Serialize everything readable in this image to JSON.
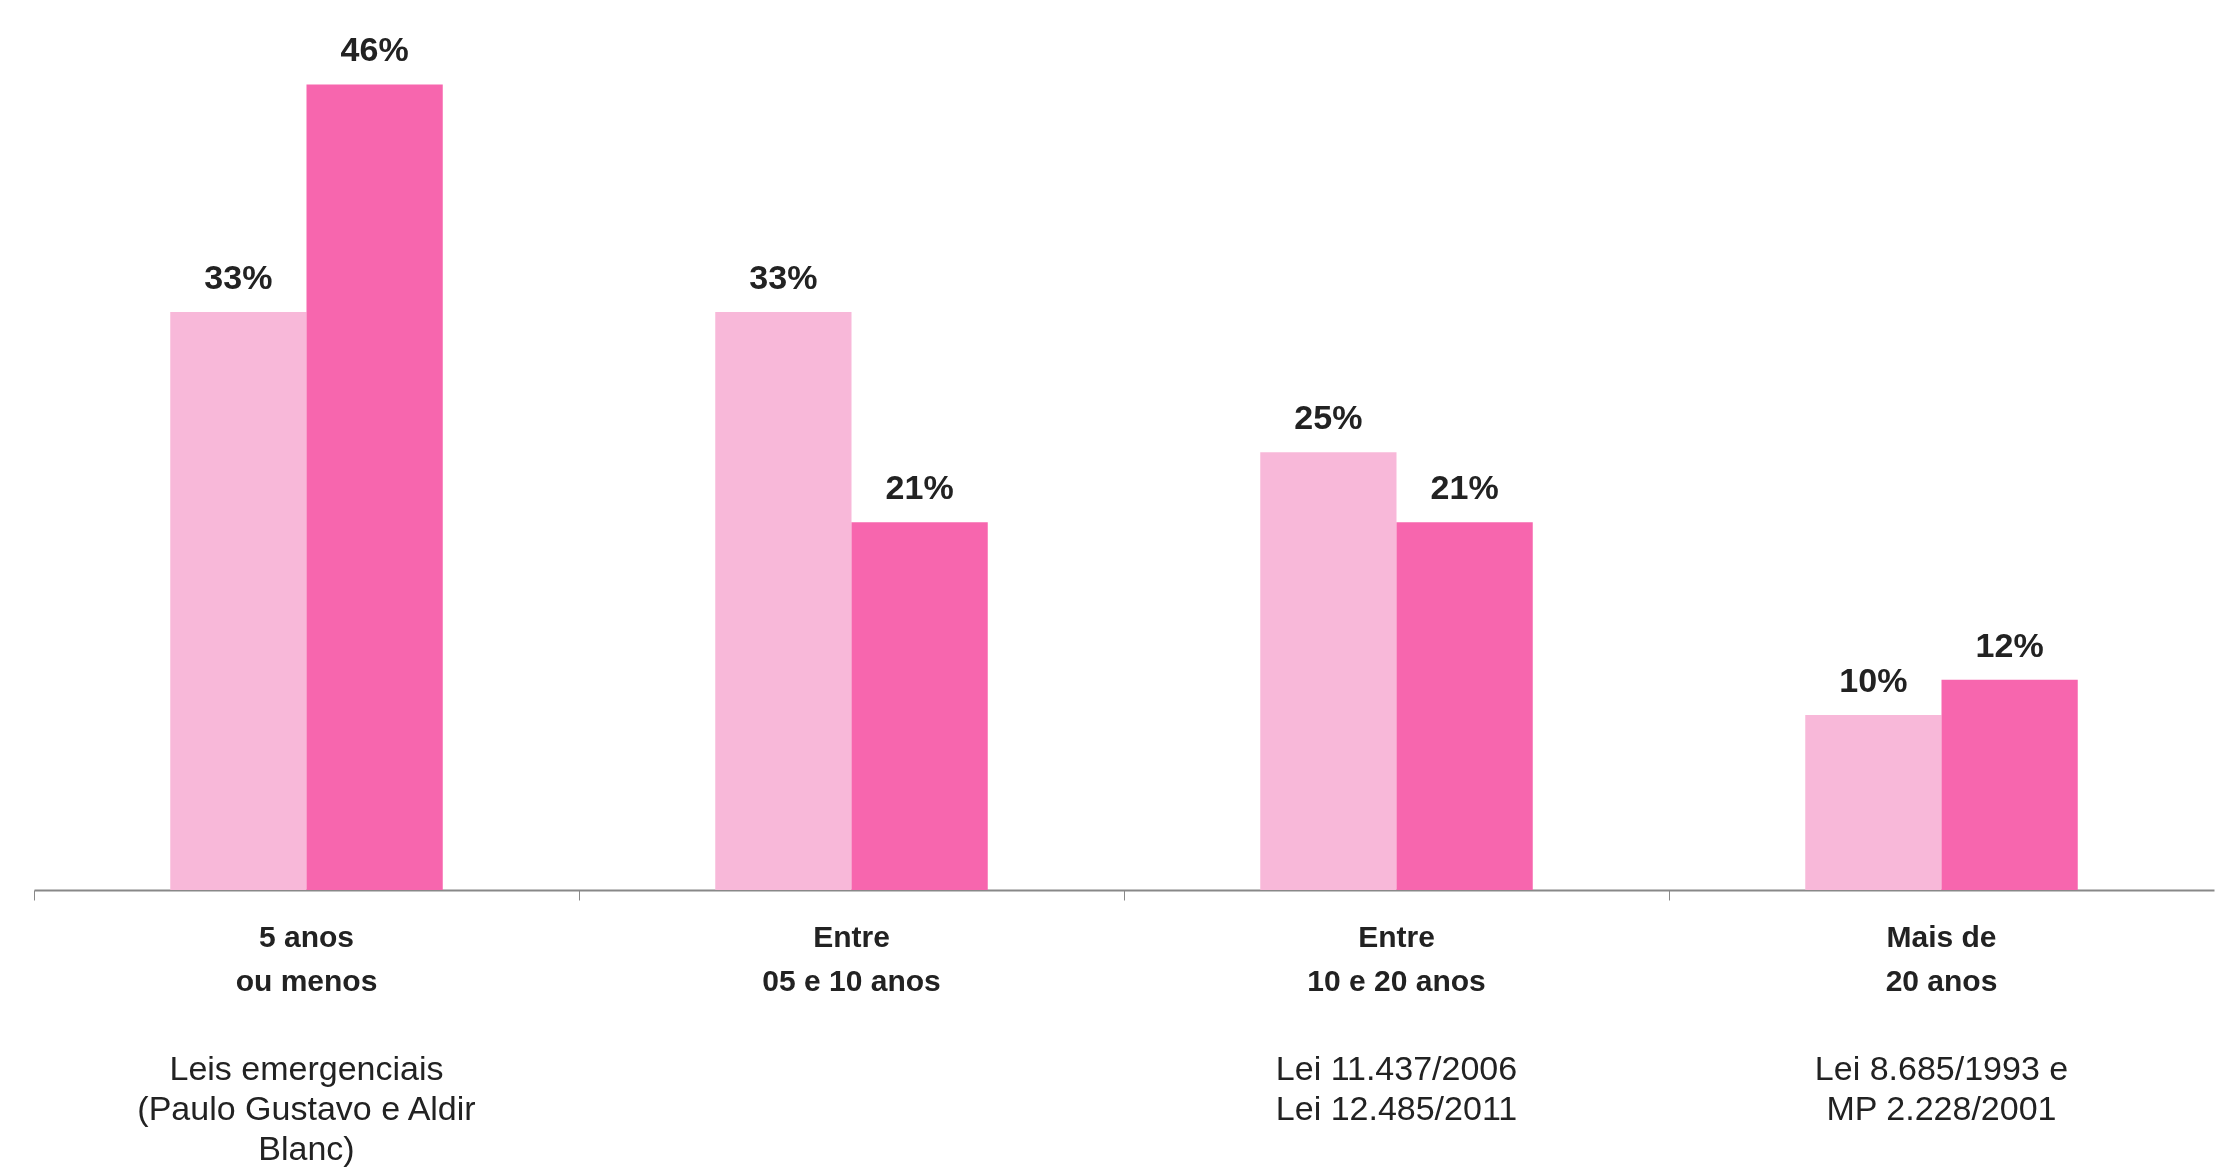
{
  "chart_data": {
    "type": "bar",
    "categories": [
      "5 anos\nou menos",
      "Entre\n05 e 10 anos",
      "Entre\n10 e 20 anos",
      "Mais de\n20 anos"
    ],
    "series": [
      {
        "color": "#f8b8d9",
        "values": [
          33,
          33,
          25,
          10
        ],
        "value_labels": [
          "33%",
          "33%",
          "25%",
          "10%"
        ]
      },
      {
        "color": "#f766ae",
        "values": [
          46,
          21,
          21,
          12
        ],
        "value_labels": [
          "46%",
          "21%",
          "21%",
          "12%"
        ]
      }
    ],
    "annotations": [
      "Leis emergenciais\n(Paulo Gustavo e Aldir\nBlanc)",
      "Lei 11.437/2006\nLei 12.485/2011",
      "Lei 8.685/1993 e\nMP 2.228/2001"
    ]
  }
}
